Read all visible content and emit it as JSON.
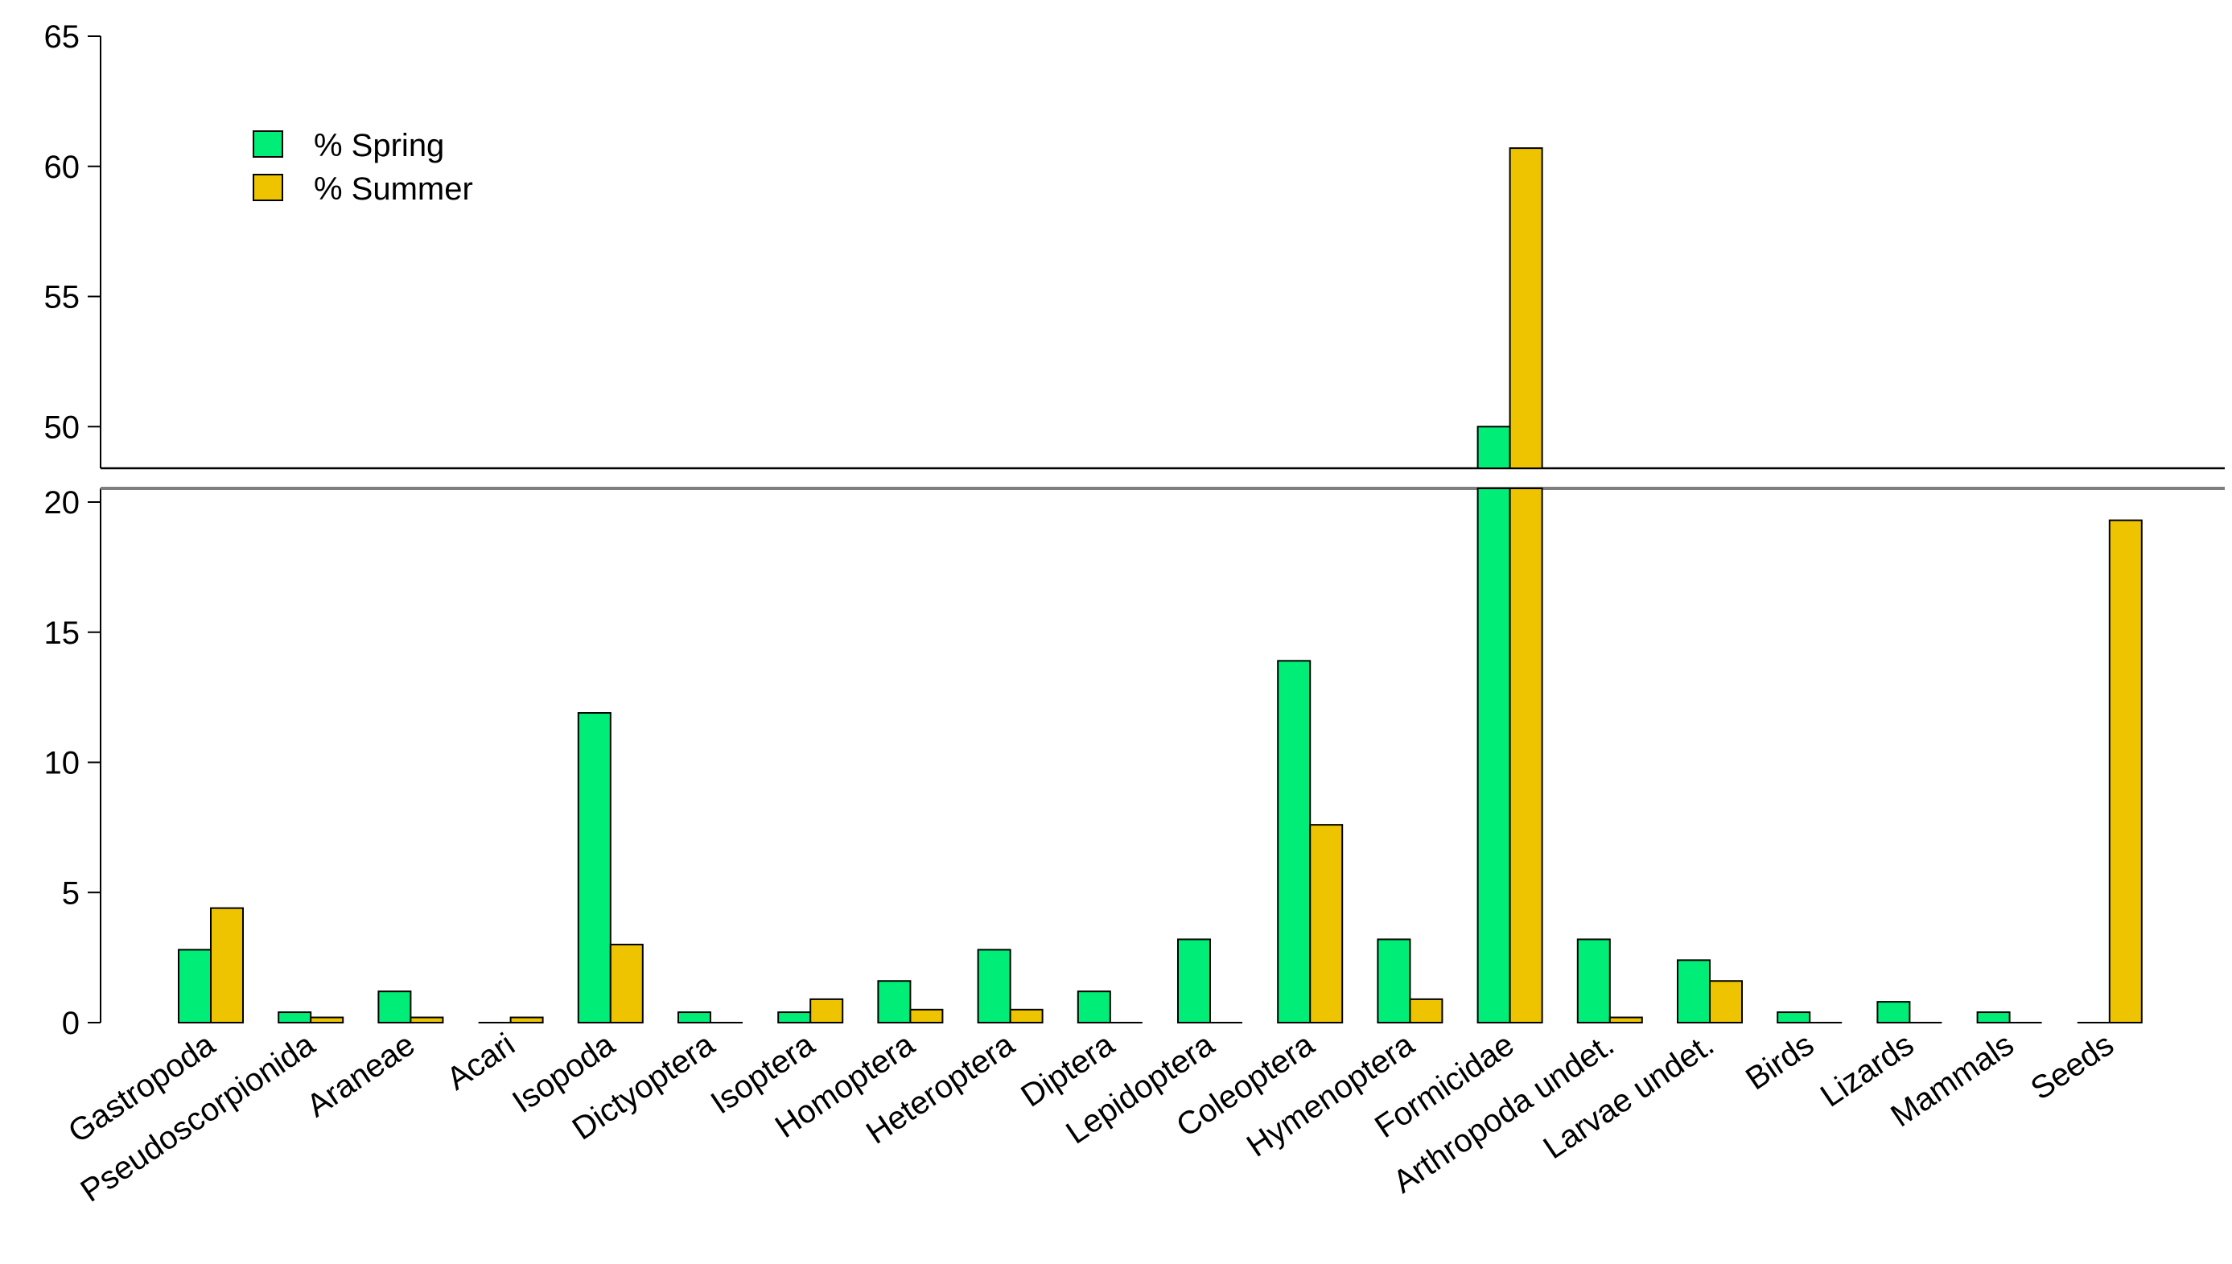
{
  "chart_data": {
    "type": "bar",
    "title": "",
    "xlabel": "",
    "ylabel": "",
    "axis_break": {
      "lower_range": [
        0,
        21
      ],
      "upper_range": [
        47,
        65
      ]
    },
    "yticks_lower": [
      0,
      5,
      10,
      15,
      20
    ],
    "yticks_upper": [
      50,
      55,
      60,
      65
    ],
    "legend_position": "top-left",
    "categories": [
      "Gastropoda",
      "Pseudoscorpionida",
      "Araneae",
      "Acari",
      "Isopoda",
      "Dictyoptera",
      "Isoptera",
      "Homoptera",
      "Heteroptera",
      "Diptera",
      "Lepidoptera",
      "Coleoptera",
      "Hymenoptera",
      "Formicidae",
      "Arthropoda undet.",
      "Larvae undet.",
      "Birds",
      "Lizards",
      "Mammals",
      "Seeds"
    ],
    "series": [
      {
        "name": "% Spring",
        "color": "#00EE77",
        "values": [
          2.8,
          0.4,
          1.2,
          0.0,
          11.9,
          0.4,
          0.4,
          1.6,
          2.8,
          1.2,
          3.2,
          13.9,
          3.2,
          50.0,
          3.2,
          2.4,
          0.4,
          0.8,
          0.4,
          0.0
        ]
      },
      {
        "name": "% Summer",
        "color": "#EEC400",
        "values": [
          4.4,
          0.2,
          0.2,
          0.2,
          3.0,
          0.0,
          0.9,
          0.5,
          0.5,
          0.0,
          0.0,
          7.6,
          0.9,
          60.7,
          0.2,
          1.6,
          0.0,
          0.0,
          0.0,
          19.3
        ]
      }
    ]
  }
}
